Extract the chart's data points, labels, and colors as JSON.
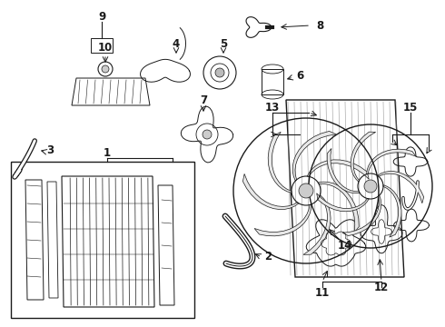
{
  "bg_color": "#ffffff",
  "line_color": "#1a1a1a",
  "figsize": [
    4.9,
    3.6
  ],
  "dpi": 100,
  "components": {
    "label_fontsize": 8.5,
    "label_fontweight": "bold"
  }
}
